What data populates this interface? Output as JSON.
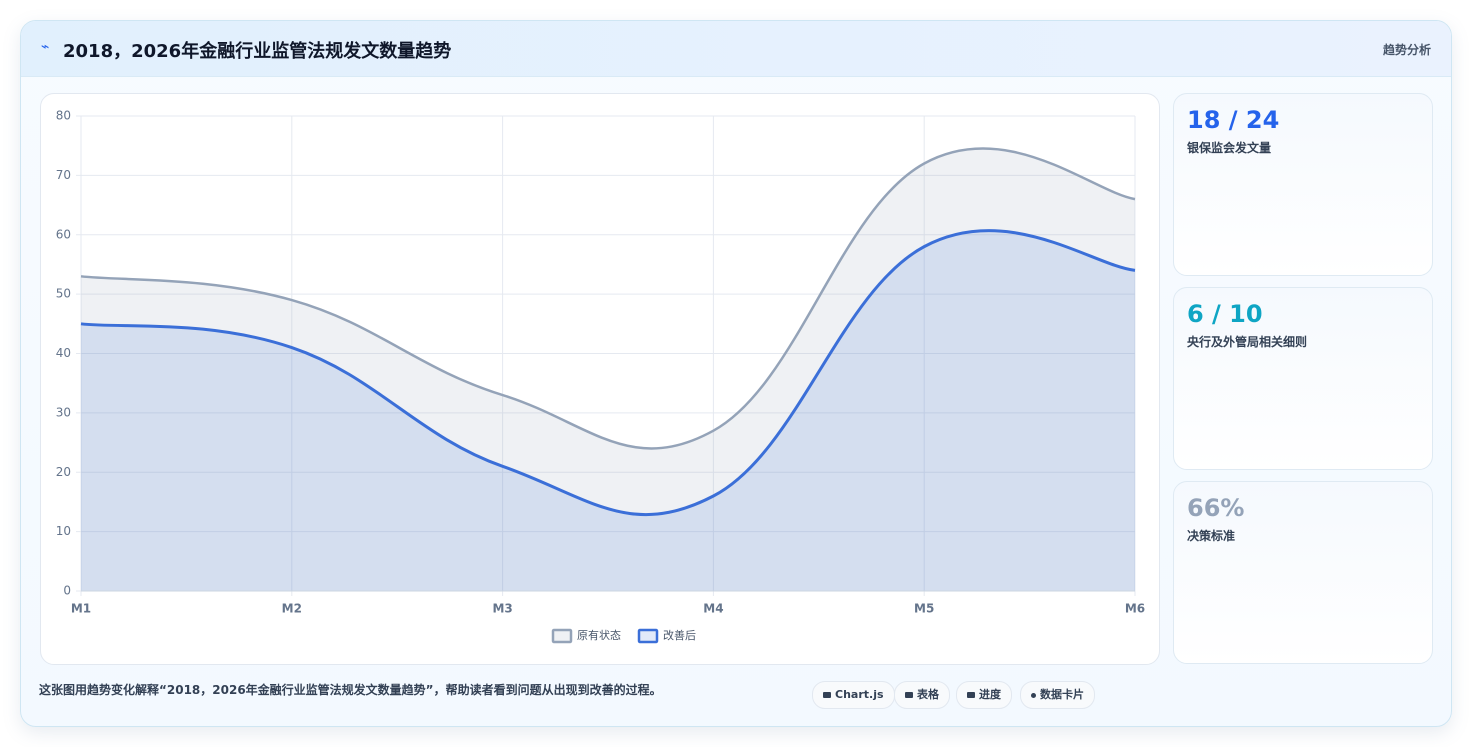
{
  "header": {
    "title": "2018，2026年金融行业监管法规发文数量趋势",
    "tag": "趋势分析"
  },
  "chart_data": {
    "type": "line",
    "categories": [
      "M1",
      "M2",
      "M3",
      "M4",
      "M5",
      "M6"
    ],
    "series": [
      {
        "name": "原有状态",
        "color": "#94a3b8",
        "values": [
          53,
          49,
          33,
          27,
          72,
          66
        ]
      },
      {
        "name": "改善后",
        "color": "#3b6fd8",
        "values": [
          45,
          41,
          21,
          16,
          58,
          54
        ]
      }
    ],
    "ylim": [
      0,
      80
    ],
    "yticks": [
      0,
      10,
      20,
      30,
      40,
      50,
      60,
      70,
      80
    ],
    "grid": true,
    "legend": "bottom"
  },
  "cards": [
    {
      "value": "18 / 24",
      "label": "银保监会发文量",
      "color": "#2563eb"
    },
    {
      "value": "6 / 10",
      "label": "央行及外管局相关细则",
      "color": "#0ea5c4"
    },
    {
      "value": "66%",
      "label": "决策标准",
      "color": "#94a3b8"
    }
  ],
  "footer": {
    "note": "这张图用趋势变化解释“2018，2026年金融行业监管法规发文数量趋势”，帮助读者看到问题从出现到改善的过程。",
    "chips": [
      "Chart.js",
      "表格",
      "进度",
      "数据卡片"
    ]
  }
}
